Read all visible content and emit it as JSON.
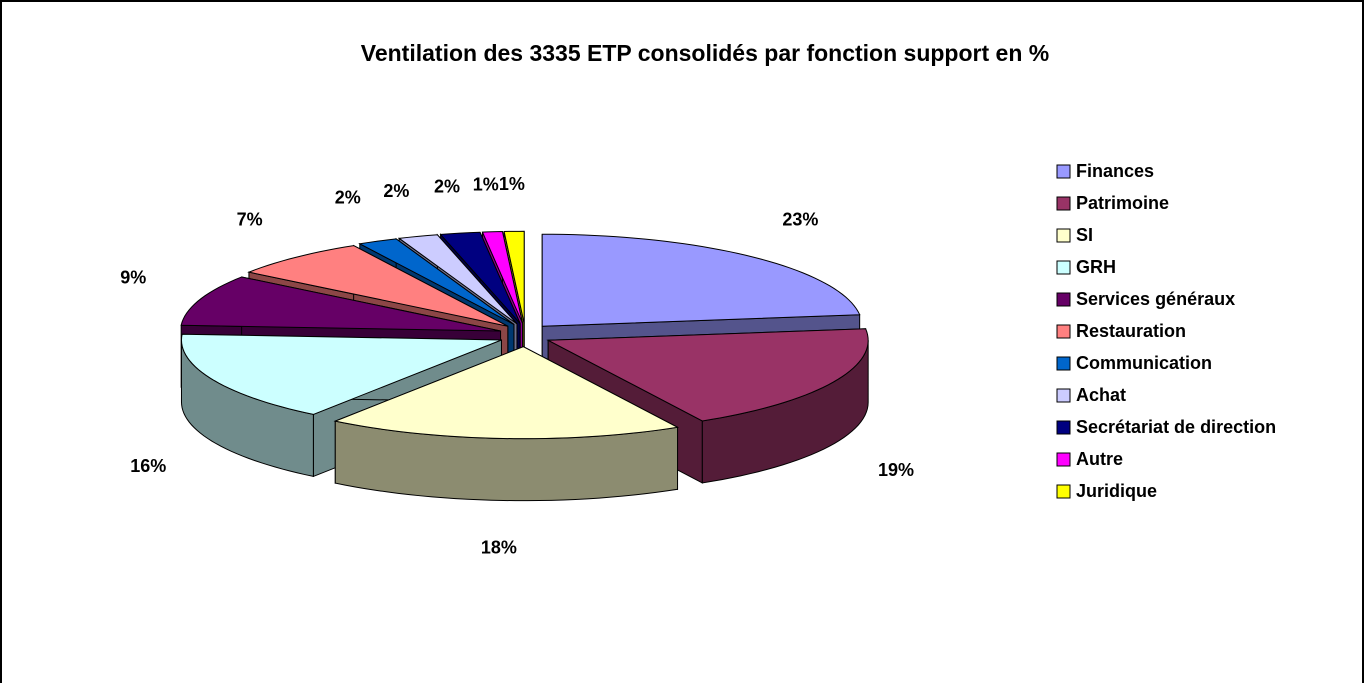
{
  "chart_data": {
    "type": "pie",
    "title": "Ventilation des 3335 ETP consolidés par fonction support en %",
    "categories": [
      "Finances",
      "Patrimoine",
      "SI",
      "GRH",
      "Services généraux",
      "Restauration",
      "Communication",
      "Achat",
      "Secrétariat de direction",
      "Autre",
      "Juridique"
    ],
    "values": [
      23,
      19,
      18,
      16,
      9,
      7,
      2,
      2,
      2,
      1,
      1
    ],
    "value_labels": [
      "23%",
      "19%",
      "18%",
      "16%",
      "9%",
      "7%",
      "2%",
      "2%",
      "2%",
      "1%",
      "1%"
    ],
    "colors": [
      "#9999ff",
      "#993366",
      "#ffffcc",
      "#ccffff",
      "#660066",
      "#ff8080",
      "#0066cc",
      "#ccccff",
      "#000080",
      "#ff00ff",
      "#ffff00"
    ],
    "legend": "right"
  }
}
